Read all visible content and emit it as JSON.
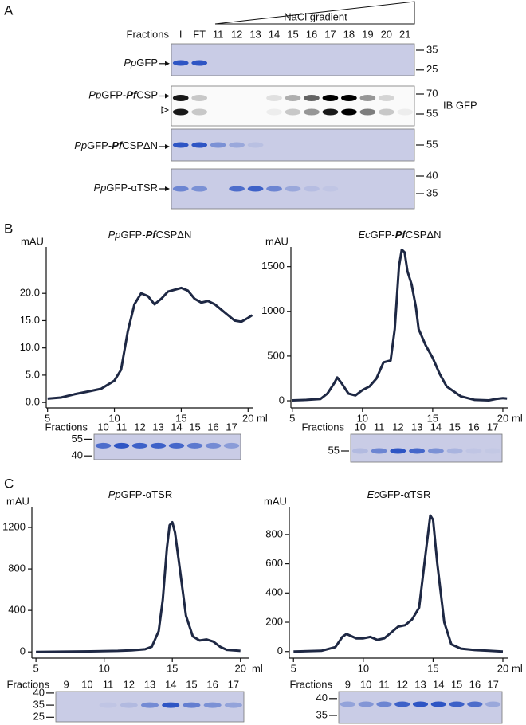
{
  "panels": [
    "A",
    "B",
    "C"
  ],
  "panel_a": {
    "gradient_label": "NaCl gradient",
    "fractions_label": "Fractions",
    "lanes": [
      "I",
      "FT",
      "11",
      "12",
      "13",
      "14",
      "15",
      "16",
      "17",
      "18",
      "19",
      "20",
      "21"
    ],
    "gels": [
      {
        "label": [
          "Pp",
          "GFP"
        ],
        "markers": [
          35,
          25
        ]
      },
      {
        "label": [
          "Pp",
          "GFP-",
          "Pf",
          "CSP"
        ],
        "markers": [
          70,
          55
        ],
        "note": "IB GFP"
      },
      {
        "label": [
          "Pp",
          "GFP-",
          "Pf",
          "CSPΔN"
        ],
        "markers": [
          55
        ]
      },
      {
        "label": [
          "Pp",
          "GFP-αTSR"
        ],
        "markers": [
          40,
          35
        ]
      }
    ]
  },
  "chart_data": [
    {
      "type": "line",
      "title": [
        "Pp",
        "GFP-",
        "Pf",
        "CSPΔN"
      ],
      "ylabel": "mAU",
      "xlabel": "ml",
      "x": [
        5,
        6,
        7,
        8,
        9,
        10,
        10.5,
        11,
        11.5,
        12,
        12.5,
        13,
        13.5,
        14,
        15,
        15.5,
        16,
        16.5,
        17,
        17.5,
        18,
        18.5,
        19,
        19.5,
        20,
        20.3
      ],
      "values": [
        0.7,
        0.9,
        1.5,
        2,
        2.5,
        4,
        6,
        13,
        18,
        20,
        19.5,
        18,
        19,
        20.3,
        21,
        20.5,
        19,
        18.3,
        18.6,
        18,
        17,
        16,
        15,
        14.8,
        15.5,
        16
      ],
      "xlim": [
        4.9,
        20.4
      ],
      "ylim": [
        -1,
        28.5
      ],
      "xticks": [
        5,
        10,
        15,
        20
      ],
      "yticks": [
        {
          "value": 0,
          "label": "0.0"
        },
        {
          "value": 5,
          "label": "5.0"
        },
        {
          "value": 10,
          "label": "10.0"
        },
        {
          "value": 15,
          "label": "15.0"
        },
        {
          "value": 20,
          "label": "20.0"
        }
      ],
      "color": "#1e2844",
      "fractions_label": "Fractions",
      "fractions": [
        "10",
        "11",
        "12",
        "13",
        "14",
        "15",
        "16",
        "17"
      ],
      "markers": [
        55,
        40
      ]
    },
    {
      "type": "line",
      "title": [
        "Ec",
        "GFP-",
        "Pf",
        "CSPΔN"
      ],
      "ylabel": "mAU",
      "xlabel": "ml",
      "x": [
        5,
        6,
        7,
        7.5,
        8,
        8.2,
        8.5,
        9,
        9.5,
        10,
        10.5,
        11,
        11.5,
        12,
        12.3,
        12.6,
        12.8,
        13,
        13.2,
        13.5,
        13.8,
        14,
        14.5,
        15,
        15.5,
        16,
        17,
        18,
        19,
        19.5,
        20,
        20.3
      ],
      "values": [
        5,
        10,
        20,
        80,
        200,
        260,
        200,
        80,
        60,
        120,
        160,
        250,
        430,
        450,
        800,
        1500,
        1690,
        1660,
        1450,
        1300,
        1050,
        800,
        620,
        480,
        300,
        160,
        50,
        10,
        5,
        20,
        30,
        25
      ],
      "xlim": [
        4.9,
        20.4
      ],
      "ylim": [
        -80,
        1720
      ],
      "xticks": [
        5,
        10,
        15,
        20
      ],
      "yticks": [
        0,
        500,
        1000,
        1500
      ],
      "color": "#1e2844",
      "fractions_label": "Fractions",
      "fractions": [
        "10",
        "11",
        "12",
        "13",
        "14",
        "15",
        "16",
        "17"
      ],
      "markers": [
        55
      ]
    },
    {
      "type": "line",
      "title": [
        "Pp",
        "GFP-αTSR"
      ],
      "ylabel": "mAU",
      "xlabel": "ml",
      "x": [
        5,
        7,
        9,
        11,
        12,
        13,
        13.5,
        14,
        14.3,
        14.6,
        14.8,
        15,
        15.2,
        15.5,
        16,
        16.5,
        17,
        17.5,
        18,
        18.5,
        19,
        20
      ],
      "values": [
        0,
        2,
        5,
        10,
        15,
        25,
        50,
        200,
        500,
        1000,
        1220,
        1250,
        1150,
        850,
        350,
        150,
        110,
        120,
        100,
        50,
        20,
        10
      ],
      "xlim": [
        4.7,
        20.6
      ],
      "ylim": [
        -60,
        1400
      ],
      "xticks": [
        5,
        10,
        15,
        20
      ],
      "yticks": [
        0,
        400,
        800,
        1200
      ],
      "color": "#1e2844",
      "fractions_label": "Fractions",
      "fractions": [
        "9",
        "10",
        "11",
        "12",
        "13",
        "14",
        "15",
        "16",
        "17"
      ],
      "markers": [
        40,
        35,
        25
      ]
    },
    {
      "type": "line",
      "title": [
        "Ec",
        "GFP-αTSR"
      ],
      "ylabel": "mAU",
      "xlabel": "ml",
      "x": [
        5,
        7,
        8,
        8.5,
        8.8,
        9.5,
        10,
        10.5,
        11,
        11.5,
        12,
        12.5,
        13,
        13.5,
        14,
        14.5,
        14.8,
        15,
        15.3,
        15.8,
        16.3,
        17,
        18,
        19,
        20
      ],
      "values": [
        0,
        5,
        30,
        100,
        120,
        90,
        90,
        100,
        80,
        90,
        130,
        170,
        180,
        220,
        300,
        700,
        930,
        900,
        600,
        200,
        50,
        20,
        10,
        5,
        0
      ],
      "xlim": [
        4.7,
        20.4
      ],
      "ylim": [
        -45,
        990
      ],
      "xticks": [
        5,
        10,
        15,
        20
      ],
      "yticks": [
        0,
        200,
        400,
        600,
        800
      ],
      "color": "#1e2844",
      "fractions_label": "Fractions",
      "fractions": [
        "9",
        "10",
        "11",
        "12",
        "13",
        "14",
        "15",
        "16",
        "17"
      ],
      "markers": [
        40,
        35
      ]
    }
  ]
}
